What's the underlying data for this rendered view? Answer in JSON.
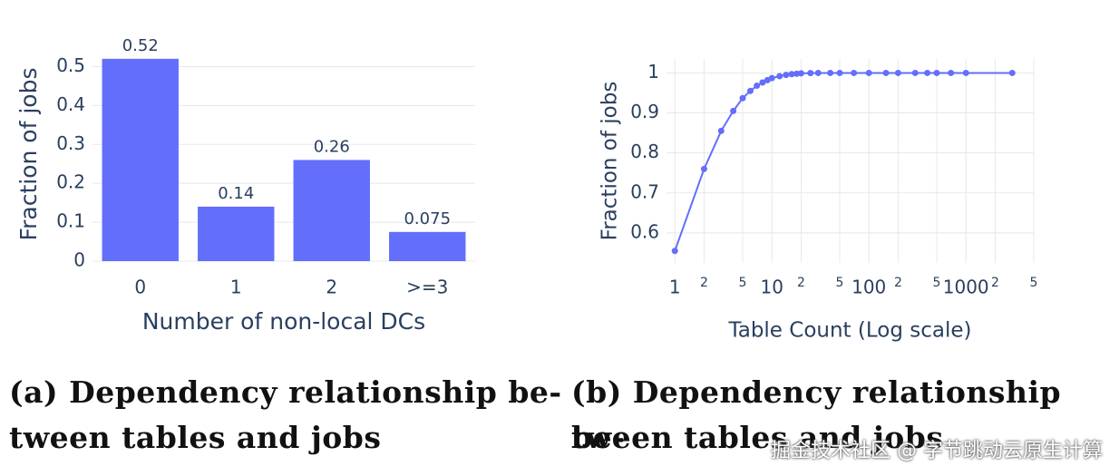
{
  "chart_data": [
    {
      "type": "bar",
      "categories": [
        "0",
        "1",
        "2",
        ">=3"
      ],
      "values": [
        0.52,
        0.14,
        0.26,
        0.075
      ],
      "color": "#636efa",
      "ylim": [
        0,
        0.55
      ],
      "yticks": [
        0,
        0.1,
        0.2,
        0.3,
        0.4,
        0.5
      ],
      "grid": true,
      "xlabel": "Number of non-local DCs",
      "ylabel": "Fraction of jobs",
      "caption_lines": [
        "(a) Dependency relationship be-",
        "tween tables and jobs"
      ]
    },
    {
      "type": "line",
      "xscale": "log",
      "color": "#636efa",
      "grid": true,
      "x": [
        1,
        2,
        3,
        4,
        5,
        6,
        7,
        8,
        9,
        10,
        12,
        14,
        16,
        18,
        20,
        25,
        30,
        40,
        50,
        70,
        100,
        150,
        200,
        300,
        400,
        500,
        700,
        1000,
        3000
      ],
      "values": [
        0.555,
        0.76,
        0.855,
        0.905,
        0.937,
        0.955,
        0.968,
        0.976,
        0.982,
        0.987,
        0.992,
        0.995,
        0.997,
        0.998,
        0.999,
        0.9995,
        1,
        1,
        1,
        1,
        1,
        1,
        1,
        1,
        1,
        1,
        1,
        1,
        1
      ],
      "xlim": [
        0.82,
        5000
      ],
      "ylim": [
        0.525,
        1.035
      ],
      "xticks": [
        1,
        {
          "value": 2,
          "label": "2"
        },
        {
          "value": 5,
          "label": "5"
        },
        10,
        {
          "value": 20,
          "label": "2"
        },
        {
          "value": 50,
          "label": "5"
        },
        100,
        {
          "value": 200,
          "label": "2"
        },
        {
          "value": 500,
          "label": "5"
        },
        1000,
        {
          "value": 2000,
          "label": "2"
        },
        {
          "value": 5000,
          "label": "5"
        }
      ],
      "yticks": [
        0.6,
        0.7,
        0.8,
        0.9,
        1
      ],
      "xlabel": "Table Count (Log scale)",
      "ylabel": "Fraction of jobs",
      "caption_lines": [
        "(b) Dependency relationship be-",
        "tween tables and jobs"
      ]
    }
  ],
  "watermark": "掘金技术社区 @ 字节跳动云原生计算"
}
